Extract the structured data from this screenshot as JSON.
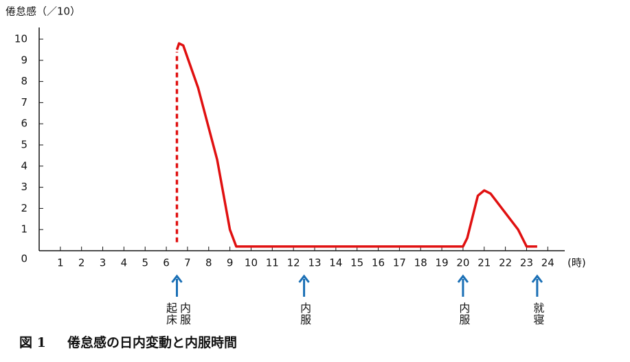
{
  "chart_data": {
    "type": "line",
    "y_axis_label": "倦怠感（／10）",
    "x_axis_label": "(時)",
    "figure_label": "図 1",
    "caption": "倦怠感の日内変動と内服時間",
    "xlim": [
      0,
      24.8
    ],
    "ylim": [
      0,
      10
    ],
    "xticks": [
      1,
      2,
      3,
      4,
      5,
      6,
      7,
      8,
      9,
      10,
      11,
      12,
      13,
      14,
      15,
      16,
      17,
      18,
      19,
      20,
      21,
      22,
      23,
      24
    ],
    "yticks": [
      0,
      1,
      2,
      3,
      4,
      5,
      6,
      7,
      8,
      9,
      10
    ],
    "series": [
      {
        "color": "#e01010",
        "style": "dotted",
        "x": [
          6.5,
          6.5
        ],
        "values": [
          0.4,
          9.4
        ]
      },
      {
        "color": "#e01010",
        "style": "solid",
        "x": [
          6.5,
          6.6,
          6.8,
          7.5,
          8.4,
          9.0,
          9.3,
          20.0,
          20.2,
          20.7,
          21.0,
          21.3,
          22.6,
          23.0,
          23.5
        ],
        "values": [
          9.5,
          9.8,
          9.7,
          7.7,
          4.3,
          1.0,
          0.2,
          0.2,
          0.6,
          2.6,
          2.85,
          2.7,
          1.0,
          0.2,
          0.2
        ]
      }
    ],
    "annotations": [
      {
        "x": 6.5,
        "texts": [
          "起床",
          "内服"
        ]
      },
      {
        "x": 12.5,
        "texts": [
          "内服"
        ]
      },
      {
        "x": 20.0,
        "texts": [
          "内服"
        ]
      },
      {
        "x": 23.5,
        "texts": [
          "就寝"
        ]
      }
    ],
    "annotation_color": "#1a6fb5"
  }
}
